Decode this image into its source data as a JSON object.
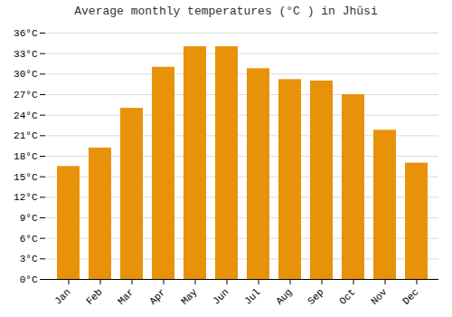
{
  "chart_data": {
    "type": "bar",
    "title": "Average monthly temperatures (°C ) in Jhūsi",
    "categories": [
      "Jan",
      "Feb",
      "Mar",
      "Apr",
      "May",
      "Jun",
      "Jul",
      "Aug",
      "Sep",
      "Oct",
      "Nov",
      "Dec"
    ],
    "values": [
      16.5,
      19.2,
      25.0,
      31.0,
      34.0,
      34.0,
      30.8,
      29.2,
      29.0,
      27.0,
      21.8,
      17.0
    ],
    "color": "#e8920a",
    "ylim": [
      0,
      36
    ],
    "yticks": [
      {
        "value": 0,
        "label": "0°C"
      },
      {
        "value": 3,
        "label": "3°C"
      },
      {
        "value": 6,
        "label": "6°C"
      },
      {
        "value": 9,
        "label": "9°C"
      },
      {
        "value": 12,
        "label": "12°C"
      },
      {
        "value": 15,
        "label": "15°C"
      },
      {
        "value": 18,
        "label": "18°C"
      },
      {
        "value": 21,
        "label": "21°C"
      },
      {
        "value": 24,
        "label": "24°C"
      },
      {
        "value": 27,
        "label": "27°C"
      },
      {
        "value": 30,
        "label": "30°C"
      },
      {
        "value": 33,
        "label": "33°C"
      },
      {
        "value": 36,
        "label": "36°C"
      }
    ],
    "grid": true
  }
}
